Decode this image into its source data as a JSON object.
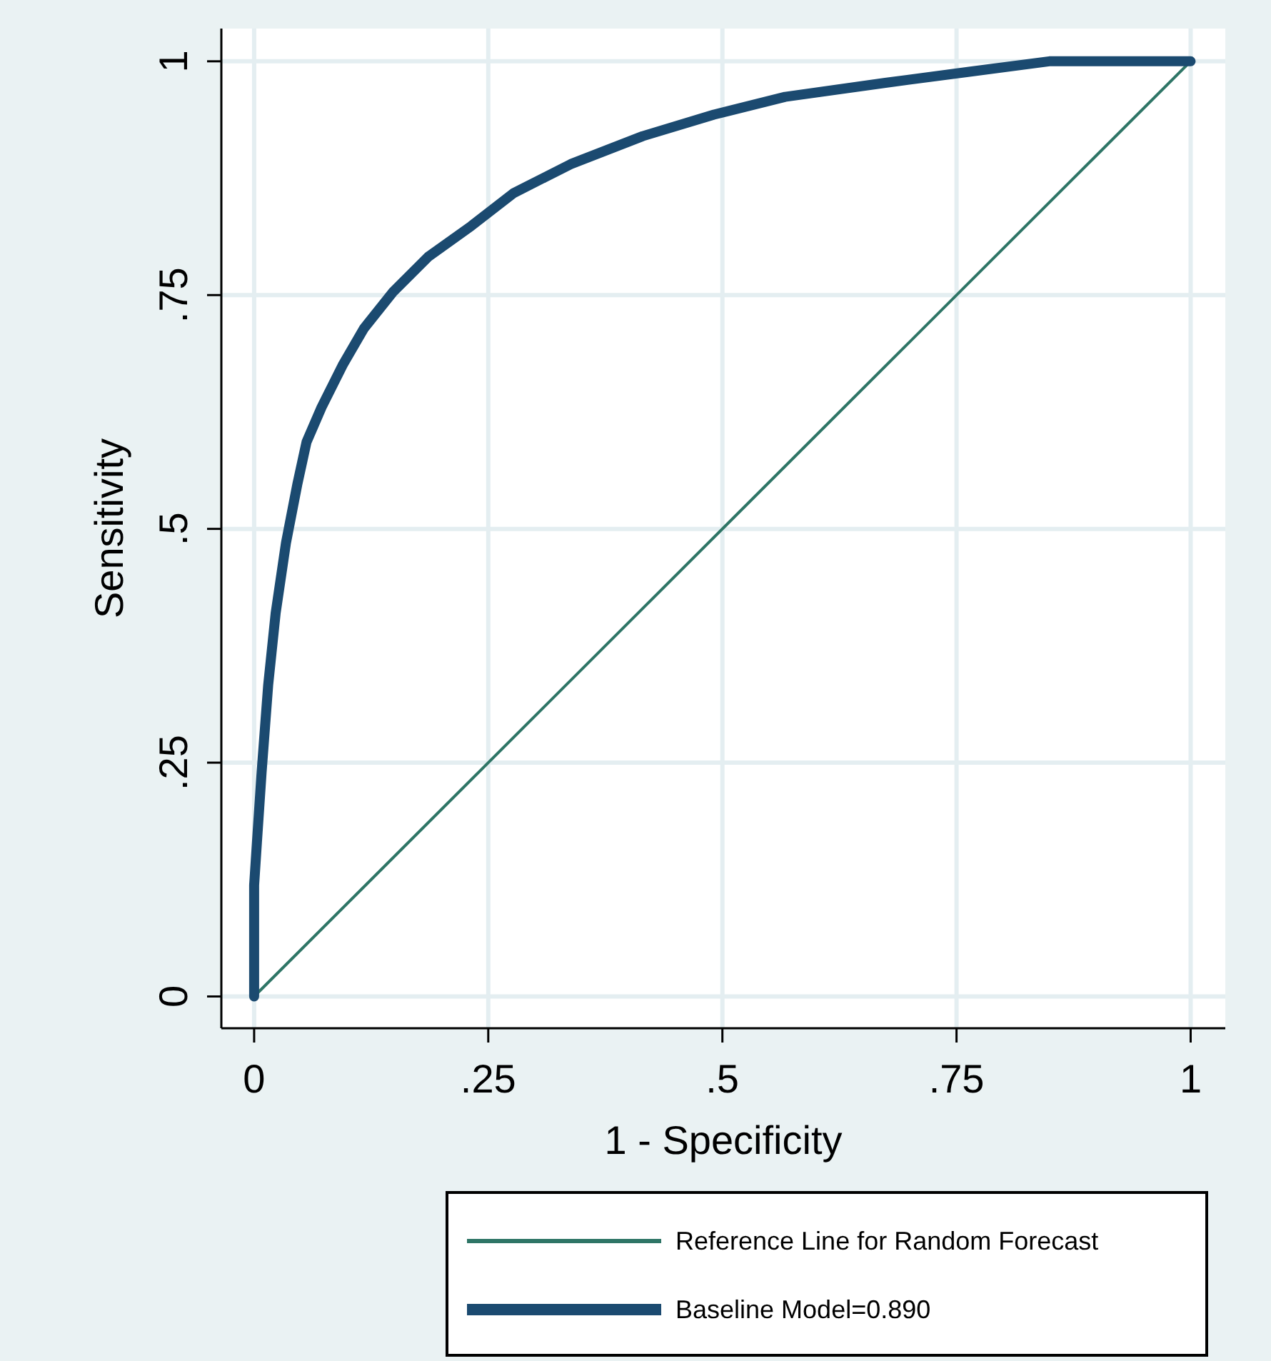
{
  "chart_data": {
    "type": "line",
    "xlabel": "1 - Specificity",
    "ylabel": "Sensitivity",
    "xlim": [
      -0.035,
      1.037
    ],
    "ylim": [
      -0.034,
      1.035
    ],
    "xticks": [
      0,
      {
        "value": 0.25,
        "label": ".25"
      },
      {
        "value": 0.5,
        "label": ".5"
      },
      {
        "value": 0.75,
        "label": ".75"
      },
      1
    ],
    "yticks": [
      0,
      {
        "value": 0.25,
        "label": ".25"
      },
      {
        "value": 0.5,
        "label": ".5"
      },
      {
        "value": 0.75,
        "label": ".75"
      },
      1
    ],
    "grid": true,
    "legend": "bottom",
    "marker": "none",
    "line_style": "solid",
    "series": [
      {
        "name": "Reference Line for Random Forecast",
        "color": "#2e7566",
        "x": [
          0,
          1
        ],
        "values": [
          0,
          1
        ]
      },
      {
        "name": "Baseline Model=0.890",
        "color": "#1b4a70",
        "x": [
          0,
          0,
          0.003,
          0.008,
          0.015,
          0.023,
          0.034,
          0.046,
          0.056,
          0.072,
          0.095,
          0.117,
          0.148,
          0.186,
          0.232,
          0.277,
          0.338,
          0.415,
          0.491,
          0.567,
          0.674,
          0.765,
          0.849,
          1
        ],
        "values": [
          0,
          0.119,
          0.165,
          0.24,
          0.333,
          0.41,
          0.485,
          0.547,
          0.593,
          0.63,
          0.676,
          0.714,
          0.753,
          0.791,
          0.824,
          0.859,
          0.89,
          0.92,
          0.943,
          0.962,
          0.977,
          0.989,
          1,
          1
        ]
      }
    ]
  }
}
